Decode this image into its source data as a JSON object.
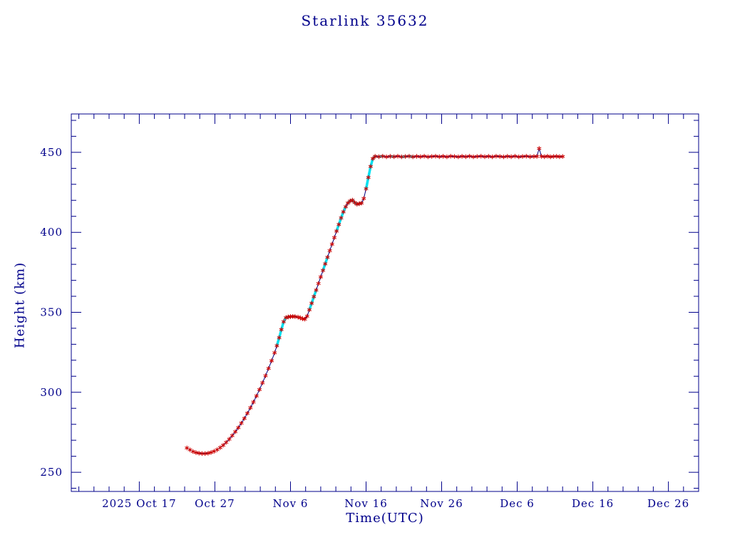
{
  "chart_data": {
    "type": "line",
    "title": "Starlink 35632",
    "xlabel": "Time(UTC)",
    "ylabel": "Height (km)",
    "x_unit": "days, 0 = 2025 Oct 17 00:00 UTC",
    "xlim": [
      -9,
      74
    ],
    "ylim": [
      238,
      474
    ],
    "x_ticks": [
      {
        "t": 0,
        "label": "2025 Oct 17"
      },
      {
        "t": 10,
        "label": "Oct 27"
      },
      {
        "t": 20,
        "label": "Nov 6"
      },
      {
        "t": 30,
        "label": "Nov 16"
      },
      {
        "t": 40,
        "label": "Nov 26"
      },
      {
        "t": 50,
        "label": "Dec 6"
      },
      {
        "t": 60,
        "label": "Dec 16"
      },
      {
        "t": 70,
        "label": "Dec 26"
      }
    ],
    "x_minor_step": 2,
    "y_ticks": [
      250,
      300,
      350,
      400,
      450
    ],
    "y_minor_step": 10,
    "grid": false,
    "legend": "none",
    "colors": {
      "axis": "#00008b",
      "line": "#000080",
      "marker": "#cc0000",
      "highlight": "#00e0f0"
    },
    "series": [
      {
        "name": "height",
        "points": [
          [
            6.3,
            265.2
          ],
          [
            6.7,
            264.0
          ],
          [
            7.1,
            263.0
          ],
          [
            7.5,
            262.3
          ],
          [
            7.9,
            261.9
          ],
          [
            8.3,
            261.7
          ],
          [
            8.7,
            261.7
          ],
          [
            9.1,
            261.9
          ],
          [
            9.5,
            262.4
          ],
          [
            9.9,
            263.1
          ],
          [
            10.3,
            264.1
          ],
          [
            10.7,
            265.4
          ],
          [
            11.1,
            266.9
          ],
          [
            11.5,
            268.7
          ],
          [
            11.9,
            270.7
          ],
          [
            12.3,
            272.9
          ],
          [
            12.7,
            275.3
          ],
          [
            13.1,
            277.9
          ],
          [
            13.5,
            280.7
          ],
          [
            13.9,
            283.7
          ],
          [
            14.3,
            286.9
          ],
          [
            14.7,
            290.3
          ],
          [
            15.1,
            293.9
          ],
          [
            15.5,
            297.7
          ],
          [
            15.9,
            301.7
          ],
          [
            16.3,
            305.9
          ],
          [
            16.7,
            310.3
          ],
          [
            17.1,
            314.9
          ],
          [
            17.5,
            319.7
          ],
          [
            17.9,
            324.7
          ],
          [
            18.2,
            329.1
          ],
          [
            18.5,
            334.1
          ],
          [
            18.8,
            339.2
          ],
          [
            19.1,
            344.1
          ],
          [
            19.4,
            346.6
          ],
          [
            19.7,
            347.1
          ],
          [
            20.0,
            347.3
          ],
          [
            20.3,
            347.4
          ],
          [
            20.6,
            347.3
          ],
          [
            21.0,
            347.0
          ],
          [
            21.3,
            346.5
          ],
          [
            21.6,
            346.0
          ],
          [
            21.9,
            345.7
          ],
          [
            22.2,
            347.6
          ],
          [
            22.5,
            351.6
          ],
          [
            22.8,
            355.7
          ],
          [
            23.1,
            359.8
          ],
          [
            23.4,
            363.9
          ],
          [
            23.7,
            368.0
          ],
          [
            24.0,
            372.1
          ],
          [
            24.3,
            376.2
          ],
          [
            24.6,
            380.3
          ],
          [
            24.9,
            384.4
          ],
          [
            25.2,
            388.5
          ],
          [
            25.5,
            392.6
          ],
          [
            25.8,
            396.7
          ],
          [
            26.1,
            400.8
          ],
          [
            26.4,
            404.9
          ],
          [
            26.7,
            409.0
          ],
          [
            27.0,
            412.8
          ],
          [
            27.3,
            416.0
          ],
          [
            27.6,
            418.3
          ],
          [
            27.9,
            419.6
          ],
          [
            28.2,
            420.1
          ],
          [
            28.5,
            418.6
          ],
          [
            28.8,
            417.6
          ],
          [
            29.1,
            417.9
          ],
          [
            29.4,
            418.3
          ],
          [
            29.7,
            421.2
          ],
          [
            30.0,
            427.2
          ],
          [
            30.3,
            434.3
          ],
          [
            30.6,
            441.2
          ],
          [
            30.9,
            446.1
          ],
          [
            31.2,
            447.5
          ],
          [
            31.7,
            447.3
          ],
          [
            32.2,
            447.6
          ],
          [
            32.7,
            447.2
          ],
          [
            33.2,
            447.5
          ],
          [
            33.7,
            447.3
          ],
          [
            34.2,
            447.6
          ],
          [
            34.7,
            447.2
          ],
          [
            35.2,
            447.4
          ],
          [
            35.7,
            447.6
          ],
          [
            36.2,
            447.2
          ],
          [
            36.7,
            447.5
          ],
          [
            37.2,
            447.3
          ],
          [
            37.7,
            447.6
          ],
          [
            38.2,
            447.2
          ],
          [
            38.7,
            447.4
          ],
          [
            39.2,
            447.6
          ],
          [
            39.7,
            447.3
          ],
          [
            40.2,
            447.5
          ],
          [
            40.7,
            447.2
          ],
          [
            41.2,
            447.6
          ],
          [
            41.7,
            447.4
          ],
          [
            42.2,
            447.2
          ],
          [
            42.7,
            447.5
          ],
          [
            43.2,
            447.3
          ],
          [
            43.7,
            447.6
          ],
          [
            44.2,
            447.2
          ],
          [
            44.7,
            447.4
          ],
          [
            45.2,
            447.6
          ],
          [
            45.7,
            447.3
          ],
          [
            46.2,
            447.5
          ],
          [
            46.7,
            447.2
          ],
          [
            47.2,
            447.6
          ],
          [
            47.7,
            447.4
          ],
          [
            48.2,
            447.2
          ],
          [
            48.7,
            447.5
          ],
          [
            49.2,
            447.3
          ],
          [
            49.7,
            447.6
          ],
          [
            50.2,
            447.2
          ],
          [
            50.7,
            447.4
          ],
          [
            51.2,
            447.6
          ],
          [
            51.7,
            447.3
          ],
          [
            52.2,
            447.4
          ],
          [
            52.6,
            447.5
          ],
          [
            52.9,
            452.4
          ],
          [
            53.2,
            447.5
          ],
          [
            53.6,
            447.3
          ],
          [
            54.0,
            447.6
          ],
          [
            54.4,
            447.2
          ],
          [
            54.8,
            447.4
          ],
          [
            55.2,
            447.5
          ],
          [
            55.6,
            447.3
          ],
          [
            56.0,
            447.4
          ]
        ]
      }
    ],
    "cyan_highlight_segments": [
      [
        18.2,
        20.6
      ],
      [
        22.3,
        23.5
      ],
      [
        24.2,
        24.9
      ],
      [
        25.9,
        27.3
      ],
      [
        27.6,
        29.6
      ],
      [
        29.8,
        31.3
      ],
      [
        31.6,
        32.4
      ],
      [
        33.1,
        33.9
      ],
      [
        34.5,
        35.3
      ],
      [
        35.6,
        36.4
      ]
    ]
  }
}
